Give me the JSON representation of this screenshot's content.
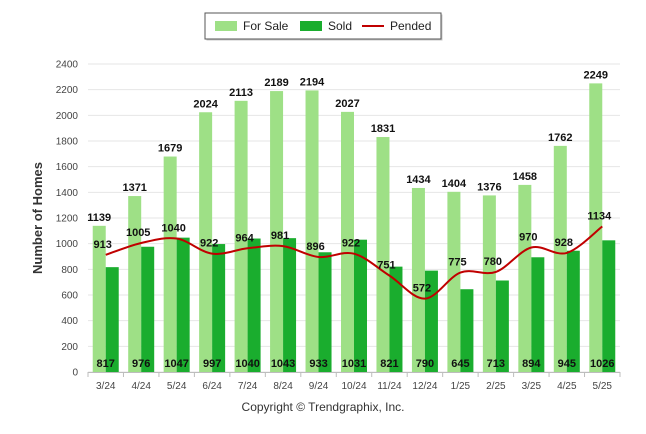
{
  "chart_data": {
    "type": "bar",
    "ylabel": "Number of Homes",
    "ylim": [
      0,
      2400
    ],
    "yticks": [
      0,
      200,
      400,
      600,
      800,
      1000,
      1200,
      1400,
      1600,
      1800,
      2000,
      2200,
      2400
    ],
    "grid": true,
    "legend_position": "top-center",
    "categories": [
      "3/24",
      "4/24",
      "5/24",
      "6/24",
      "7/24",
      "8/24",
      "9/24",
      "10/24",
      "11/24",
      "12/24",
      "1/25",
      "2/25",
      "3/25",
      "4/25",
      "5/25"
    ],
    "series": [
      {
        "name": "For Sale",
        "kind": "bar",
        "color": "#9ee086",
        "values": [
          1139,
          1371,
          1679,
          2024,
          2113,
          2189,
          2194,
          2027,
          1831,
          1434,
          1404,
          1376,
          1458,
          1762,
          2249
        ]
      },
      {
        "name": "Sold",
        "kind": "bar",
        "color": "#1aad2e",
        "values": [
          817,
          976,
          1047,
          997,
          1040,
          1043,
          933,
          1031,
          821,
          790,
          645,
          713,
          894,
          945,
          1026
        ]
      },
      {
        "name": "Pended",
        "kind": "line",
        "color": "#c00000",
        "values": [
          913,
          1005,
          1040,
          922,
          964,
          981,
          896,
          922,
          751,
          572,
          775,
          780,
          970,
          928,
          1134
        ]
      }
    ]
  },
  "footer": {
    "copyright": "Copyright © Trendgraphix, Inc."
  }
}
